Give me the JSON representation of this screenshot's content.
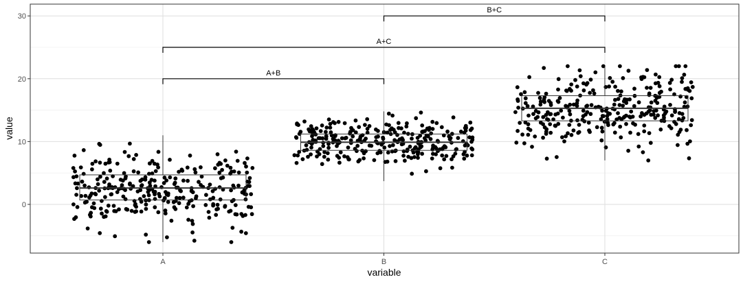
{
  "chart_data": {
    "type": "boxplot-jitter",
    "xlabel": "variable",
    "ylabel": "value",
    "categories": [
      "A",
      "B",
      "C"
    ],
    "ylim": [
      -7.5,
      31
    ],
    "yticks": [
      0,
      10,
      20,
      30
    ],
    "grid": true,
    "boxes": [
      {
        "category": "A",
        "min": -6,
        "q1": 0.7,
        "median": 2.6,
        "q3": 4.7,
        "max": 11.0
      },
      {
        "category": "B",
        "min": 3.7,
        "q1": 8.6,
        "median": 9.9,
        "q3": 11.2,
        "max": 14.8
      },
      {
        "category": "C",
        "min": 7.0,
        "q1": 13.3,
        "median": 15.3,
        "q3": 17.3,
        "max": 22.0
      }
    ],
    "comparisons": [
      {
        "label": "A+B",
        "from": "A",
        "to": "B",
        "y": 20
      },
      {
        "label": "A+C",
        "from": "A",
        "to": "C",
        "y": 25
      },
      {
        "label": "B+C",
        "from": "B",
        "to": "C",
        "y": 30
      }
    ],
    "points_per_group": 300,
    "point_color": "#000000"
  }
}
